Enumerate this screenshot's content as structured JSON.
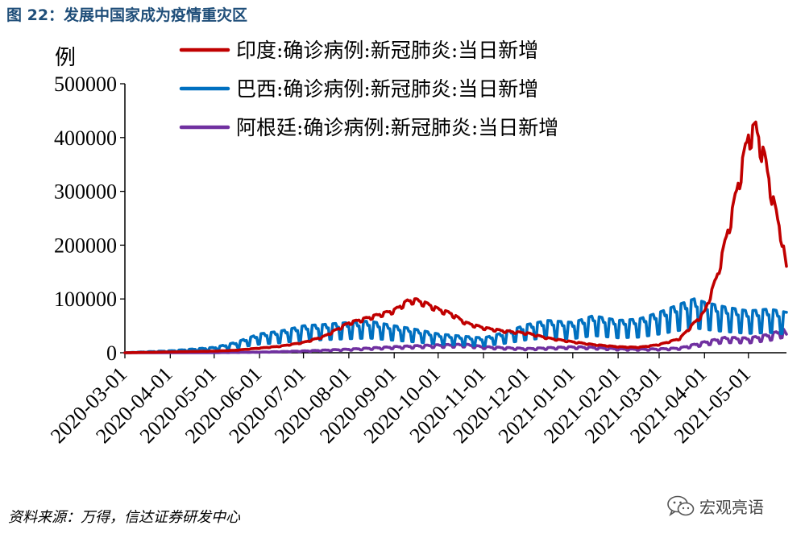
{
  "figure_title": "图 22：发展中国家成为疫情重灾区",
  "source_note": "资料来源：万得，信达证券研发中心",
  "watermark": {
    "text": "宏观亮语",
    "icon": "wechat-icon"
  },
  "chart_data": {
    "type": "line",
    "ylabel": "例",
    "ylim": [
      0,
      500000
    ],
    "yticks": [
      "0",
      "100000",
      "200000",
      "300000",
      "400000",
      "500000"
    ],
    "xticks": [
      "2020-03-01",
      "2020-04-01",
      "2020-05-01",
      "2020-06-01",
      "2020-07-01",
      "2020-08-01",
      "2020-09-01",
      "2020-10-01",
      "2020-11-01",
      "2020-12-01",
      "2021-01-01",
      "2021-02-01",
      "2021-03-01",
      "2021-04-01",
      "2021-05-01"
    ],
    "x_range": [
      "2020-03-01",
      "2021-05-27"
    ],
    "grid": false,
    "legend_position": "top",
    "series": [
      {
        "name": "印度:确诊病例:新冠肺炎:当日新增",
        "color": "#c00000",
        "points": [
          [
            "2020-03-01",
            0
          ],
          [
            "2020-04-01",
            1500
          ],
          [
            "2020-05-01",
            3000
          ],
          [
            "2020-05-15",
            4500
          ],
          [
            "2020-06-01",
            8500
          ],
          [
            "2020-06-15",
            12000
          ],
          [
            "2020-07-01",
            19000
          ],
          [
            "2020-07-15",
            30000
          ],
          [
            "2020-08-01",
            55000
          ],
          [
            "2020-08-15",
            65000
          ],
          [
            "2020-09-01",
            78000
          ],
          [
            "2020-09-10",
            95000
          ],
          [
            "2020-09-16",
            97000
          ],
          [
            "2020-09-25",
            88000
          ],
          [
            "2020-10-01",
            80000
          ],
          [
            "2020-10-10",
            72000
          ],
          [
            "2020-10-20",
            55000
          ],
          [
            "2020-11-01",
            46000
          ],
          [
            "2020-11-15",
            40000
          ],
          [
            "2020-12-01",
            36000
          ],
          [
            "2020-12-15",
            27000
          ],
          [
            "2021-01-01",
            20000
          ],
          [
            "2021-01-15",
            15000
          ],
          [
            "2021-02-01",
            11000
          ],
          [
            "2021-02-15",
            10000
          ],
          [
            "2021-03-01",
            15000
          ],
          [
            "2021-03-15",
            26000
          ],
          [
            "2021-03-25",
            55000
          ],
          [
            "2021-04-01",
            75000
          ],
          [
            "2021-04-10",
            145000
          ],
          [
            "2021-04-20",
            260000
          ],
          [
            "2021-04-27",
            350000
          ],
          [
            "2021-05-01",
            400000
          ],
          [
            "2021-05-06",
            414000
          ],
          [
            "2021-05-12",
            360000
          ],
          [
            "2021-05-18",
            280000
          ],
          [
            "2021-05-24",
            210000
          ],
          [
            "2021-05-27",
            155000
          ]
        ]
      },
      {
        "name": "巴西:确诊病例:新冠肺炎:当日新增",
        "color": "#0070c0",
        "points": [
          [
            "2020-03-01",
            0
          ],
          [
            "2020-04-01",
            3000
          ],
          [
            "2020-05-01",
            8000
          ],
          [
            "2020-05-15",
            15000
          ],
          [
            "2020-06-01",
            28000
          ],
          [
            "2020-06-15",
            32000
          ],
          [
            "2020-07-01",
            40000
          ],
          [
            "2020-07-15",
            42000
          ],
          [
            "2020-08-01",
            45000
          ],
          [
            "2020-08-15",
            47000
          ],
          [
            "2020-09-01",
            40000
          ],
          [
            "2020-09-15",
            35000
          ],
          [
            "2020-10-01",
            28000
          ],
          [
            "2020-10-15",
            25000
          ],
          [
            "2020-11-01",
            22000
          ],
          [
            "2020-11-15",
            30000
          ],
          [
            "2020-12-01",
            42000
          ],
          [
            "2020-12-15",
            48000
          ],
          [
            "2021-01-01",
            45000
          ],
          [
            "2021-01-15",
            55000
          ],
          [
            "2021-02-01",
            48000
          ],
          [
            "2021-02-15",
            50000
          ],
          [
            "2021-03-01",
            60000
          ],
          [
            "2021-03-15",
            72000
          ],
          [
            "2021-03-25",
            80000
          ],
          [
            "2021-04-01",
            75000
          ],
          [
            "2021-04-15",
            68000
          ],
          [
            "2021-05-01",
            62000
          ],
          [
            "2021-05-15",
            65000
          ],
          [
            "2021-05-27",
            60000
          ]
        ]
      },
      {
        "name": "阿根廷:确诊病例:新冠肺炎:当日新增",
        "color": "#7030a0",
        "points": [
          [
            "2020-03-01",
            0
          ],
          [
            "2020-05-01",
            200
          ],
          [
            "2020-06-01",
            1000
          ],
          [
            "2020-07-01",
            3000
          ],
          [
            "2020-08-01",
            6000
          ],
          [
            "2020-09-01",
            10000
          ],
          [
            "2020-10-01",
            13000
          ],
          [
            "2020-10-20",
            14000
          ],
          [
            "2020-11-01",
            10000
          ],
          [
            "2020-12-01",
            7000
          ],
          [
            "2021-01-01",
            10000
          ],
          [
            "2021-01-15",
            9000
          ],
          [
            "2021-02-01",
            6500
          ],
          [
            "2021-02-15",
            6000
          ],
          [
            "2021-03-01",
            6500
          ],
          [
            "2021-03-15",
            8000
          ],
          [
            "2021-04-01",
            18000
          ],
          [
            "2021-04-15",
            25000
          ],
          [
            "2021-05-01",
            24000
          ],
          [
            "2021-05-15",
            30000
          ],
          [
            "2021-05-25",
            38000
          ],
          [
            "2021-05-27",
            30000
          ]
        ]
      }
    ]
  }
}
